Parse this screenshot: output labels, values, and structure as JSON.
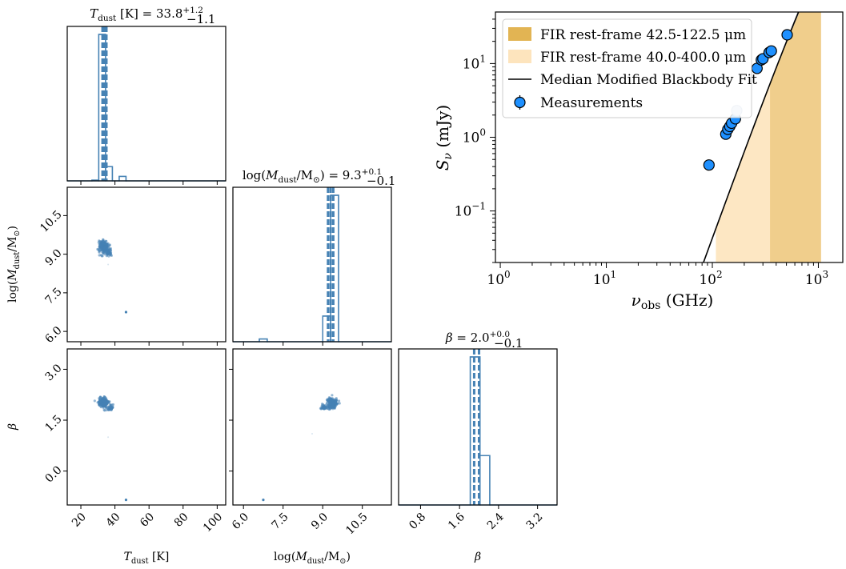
{
  "colors": {
    "corner": "#4682b4",
    "fir_narrow": "#e0b04a",
    "fir_wide": "#fde4bd",
    "fit_line": "#000000",
    "fit_band": "#bdbdbd",
    "measurement": "#1e90ff"
  },
  "corner": {
    "titles": {
      "t_dust": "T_dust [K] = 33.8 +1.2 −1.1",
      "log_mdust": "log(M_dust/M_⊙) = 9.3 +0.1 −0.1",
      "beta": "β = 2.0 +0.0 −0.1"
    },
    "axis_labels": {
      "t_dust": "T_dust [K]",
      "log_mdust": "log(M_dust/M_⊙)",
      "beta": "β"
    },
    "ticks": {
      "t_dust": [
        "20",
        "40",
        "60",
        "80",
        "100"
      ],
      "log_mdust": [
        "6.0",
        "7.5",
        "9.0",
        "10.5"
      ],
      "beta_y": [
        "0.0",
        "1.5",
        "3.0"
      ],
      "beta_x": [
        "0.8",
        "1.6",
        "2.4",
        "3.2"
      ]
    }
  },
  "chart_data": [
    {
      "type": "histogram",
      "title": "T_dust [K] = 33.8 +1.2 −1.1",
      "xlabel": "T_dust [K]",
      "xlim": [
        12,
        105
      ],
      "bins": [
        {
          "lo": 26.5,
          "hi": 30.5,
          "count": 40
        },
        {
          "lo": 30.5,
          "hi": 34.5,
          "count": 8200
        },
        {
          "lo": 34.5,
          "hi": 38.5,
          "count": 800
        },
        {
          "lo": 42.5,
          "hi": 46.5,
          "count": 250
        }
      ],
      "median": 33.8,
      "quantiles": [
        32.7,
        33.8,
        35.0
      ]
    },
    {
      "type": "histogram",
      "title": "log(M_dust/M_⊙) = 9.3 +0.1 −0.1",
      "xlabel": "log(M_dust/M_⊙)",
      "xlim": [
        5.6,
        11.6
      ],
      "bins": [
        {
          "lo": 6.6,
          "hi": 6.9,
          "count": 150
        },
        {
          "lo": 9.0,
          "hi": 9.3,
          "count": 1400
        },
        {
          "lo": 9.3,
          "hi": 9.6,
          "count": 8000
        }
      ],
      "median": 9.3,
      "quantiles": [
        9.2,
        9.3,
        9.4
      ]
    },
    {
      "type": "histogram",
      "title": "β = 2.0 +0.0 −0.1",
      "xlabel": "β",
      "xlim": [
        0.35,
        3.6
      ],
      "bins": [
        {
          "lo": 1.82,
          "hi": 2.02,
          "count": 7500
        },
        {
          "lo": 2.02,
          "hi": 2.22,
          "count": 2500
        }
      ],
      "median": 2.0,
      "quantiles": [
        1.9,
        2.0,
        2.0
      ]
    },
    {
      "type": "scatter",
      "xlabel": "T_dust [K]",
      "ylabel": "log(M_dust/M_⊙)",
      "xlim": [
        12,
        105
      ],
      "ylim": [
        5.6,
        11.6
      ],
      "clusters": [
        {
          "x": 33.5,
          "y": 9.3,
          "sx": 1.4,
          "sy": 0.12,
          "n": 220
        },
        {
          "x": 36.5,
          "y": 9.05,
          "sx": 0.8,
          "sy": 0.07,
          "n": 40
        }
      ],
      "points": [
        [
          46.5,
          6.75
        ],
        [
          36,
          8.6
        ]
      ]
    },
    {
      "type": "scatter",
      "xlabel": "T_dust [K]",
      "ylabel": "β",
      "xlim": [
        12,
        105
      ],
      "ylim": [
        -1.0,
        3.6
      ],
      "clusters": [
        {
          "x": 33.0,
          "y": 2.02,
          "sx": 1.4,
          "sy": 0.07,
          "n": 220
        },
        {
          "x": 37.5,
          "y": 1.86,
          "sx": 0.8,
          "sy": 0.04,
          "n": 40
        }
      ],
      "points": [
        [
          46.5,
          -0.85
        ],
        [
          36,
          1.0
        ]
      ]
    },
    {
      "type": "scatter",
      "xlabel": "log(M_dust/M_⊙)",
      "ylabel": "β",
      "xlim": [
        5.6,
        11.6
      ],
      "ylim": [
        -1.0,
        3.6
      ],
      "clusters": [
        {
          "x": 9.35,
          "y": 2.0,
          "sx": 0.09,
          "sy": 0.08,
          "n": 220
        },
        {
          "x": 9.05,
          "y": 1.88,
          "sx": 0.05,
          "sy": 0.04,
          "n": 40
        }
      ],
      "points": [
        [
          6.75,
          -0.85
        ],
        [
          8.6,
          1.1
        ]
      ]
    },
    {
      "type": "line",
      "xlabel": "ν_obs (GHz)",
      "ylabel": "S_ν (mJy)",
      "xscale": "log",
      "yscale": "log",
      "xlim": [
        0.9,
        1700
      ],
      "ylim": [
        0.02,
        50
      ],
      "xticks": [
        "10^0",
        "10^1",
        "10^2",
        "10^3"
      ],
      "yticks": [
        "10^-1",
        "10^0",
        "10^1"
      ],
      "legend": {
        "placement": "upper-left",
        "entries": [
          "FIR rest-frame 42.5-122.5 μm",
          "FIR rest-frame 40.0-400.0 μm",
          "Median Modified Blackbody Fit",
          "Measurements"
        ]
      },
      "fir_narrow_range_ghz": [
        350,
        1060
      ],
      "fir_wide_range_ghz": [
        108,
        1060
      ],
      "fit_model": {
        "beta": 2.0,
        "T_obs_K": 33.8,
        "peak_ghz": 522,
        "peak_mjy": 23
      },
      "measurements": [
        {
          "x": 93,
          "y": 0.42
        },
        {
          "x": 134,
          "y": 1.1
        },
        {
          "x": 140,
          "y": 1.28
        },
        {
          "x": 146,
          "y": 1.4
        },
        {
          "x": 152,
          "y": 1.55
        },
        {
          "x": 165,
          "y": 1.78
        },
        {
          "x": 170,
          "y": 2.3
        },
        {
          "x": 264,
          "y": 8.6
        },
        {
          "x": 290,
          "y": 11.2
        },
        {
          "x": 300,
          "y": 11.6
        },
        {
          "x": 343,
          "y": 14.1
        },
        {
          "x": 360,
          "y": 14.8
        },
        {
          "x": 508,
          "y": 24.5
        }
      ]
    }
  ]
}
